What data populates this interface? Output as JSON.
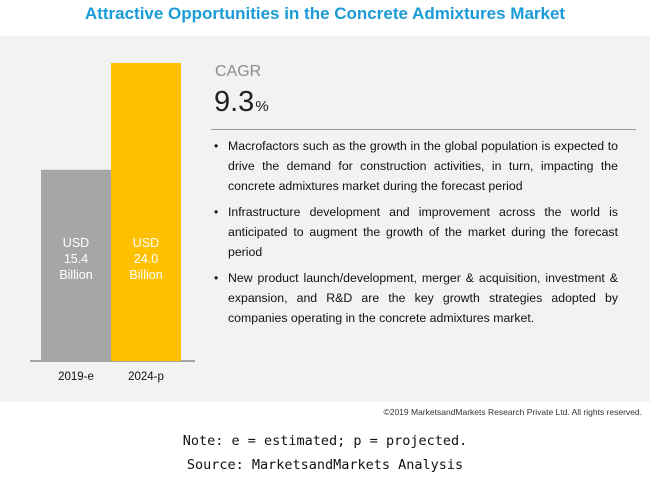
{
  "title": "Attractive Opportunities in the Concrete Admixtures Market",
  "cagr": {
    "label": "CAGR",
    "value": "9.3",
    "unit": "%"
  },
  "bullets": [
    "Macrofactors such as the growth in the global population is expected to drive the demand for construction activities, in turn, impacting the concrete admixtures market during the forecast period",
    "Infrastructure development and improvement across the world is anticipated to augment the growth of the market during the forecast period",
    "New product launch/development, merger & acquisition, investment & expansion, and R&D are the key growth strategies adopted by companies operating in the concrete admixtures market."
  ],
  "bullet_symbol": "•",
  "copyright": "©2019 MarketsandMarkets Research Private Ltd. All rights reserved.",
  "note": "Note: e = estimated; p = projected.",
  "source": "Source: MarketsandMarkets Analysis",
  "colors": {
    "title": "#1a9bd7",
    "bar_2019": "#a6a6a6",
    "bar_2024": "#ffc000",
    "panel": "#f2f2f2"
  },
  "chart_data": {
    "type": "bar",
    "categories": [
      "2019-e",
      "2024-p"
    ],
    "values": [
      15.4,
      24.0
    ],
    "unit": "USD Billion",
    "bar_labels": [
      [
        "USD",
        "15.4",
        "Billion"
      ],
      [
        "USD",
        "24.0",
        "Billion"
      ]
    ],
    "colors": [
      "#a6a6a6",
      "#ffc000"
    ],
    "title": "",
    "xlabel": "",
    "ylabel": "",
    "ylim": [
      0,
      24.0
    ],
    "grid": false,
    "legend": "none"
  }
}
